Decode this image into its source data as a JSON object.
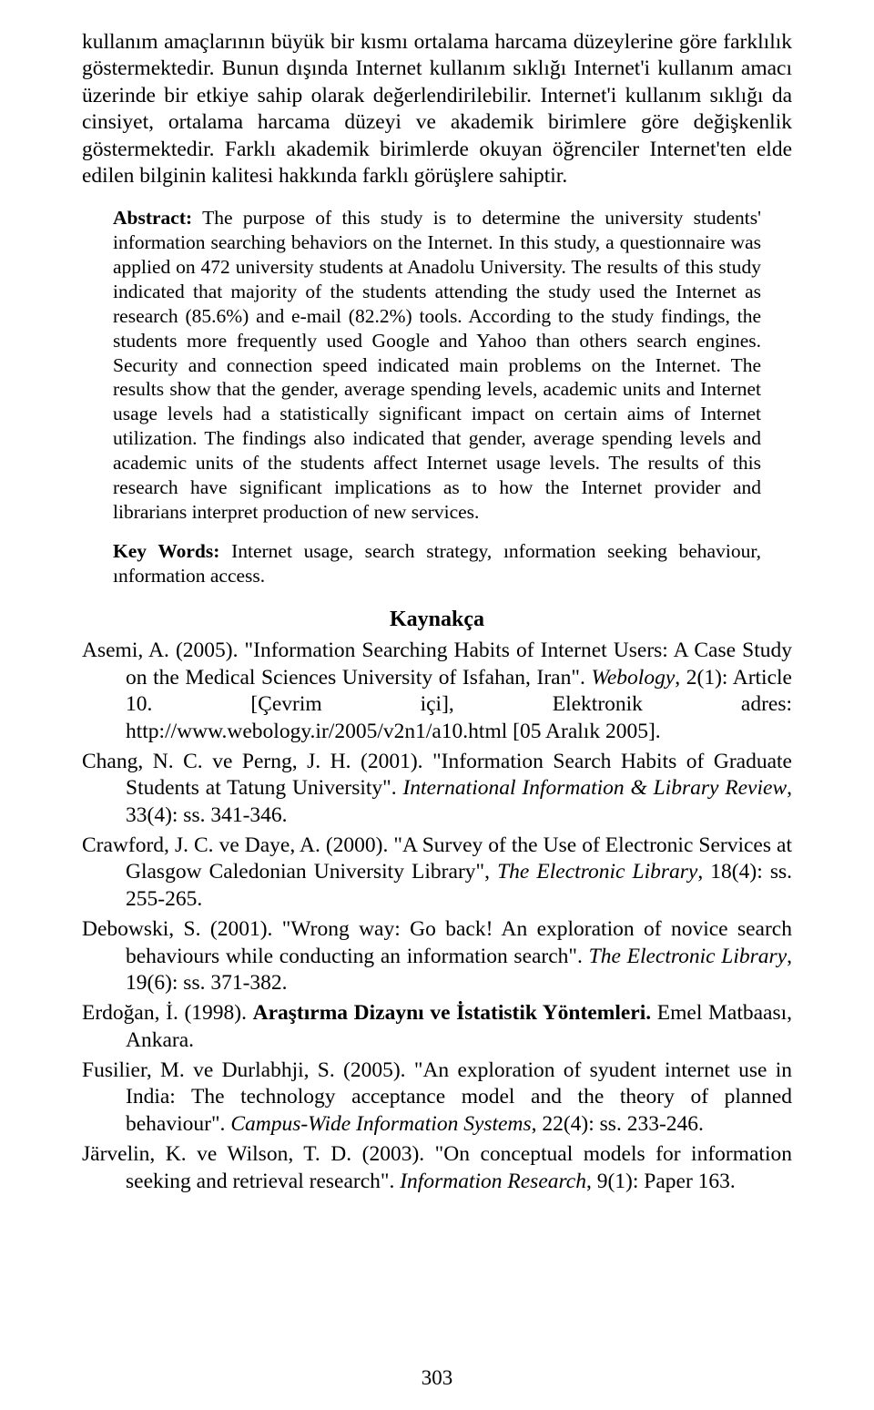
{
  "body_paragraph": "kullanım amaçlarının büyük bir kısmı ortalama harcama düzeylerine göre farklılık göstermektedir. Bunun dışında Internet kullanım sıklığı Internet'i kullanım amacı üzerinde bir etkiye sahip olarak değerlendirilebilir. Internet'i kullanım sıklığı da cinsiyet, ortalama harcama düzeyi ve akademik birimlere göre değişkenlik göstermektedir. Farklı akademik birimlerde okuyan öğrenciler Internet'ten elde edilen bilginin kalitesi hakkında farklı görüşlere sahiptir.",
  "abstract": {
    "lead": "Abstract:",
    "text": " The purpose of this study is to determine the university students' information searching behaviors on the Internet. In this study, a questionnaire was applied on 472 university students at Anadolu University. The results of this study indicated that majority of the students attending the study used the Internet as research (85.6%) and e-mail (82.2%) tools. According to the study findings, the students more frequently used Google and Yahoo than others search engines. Security and connection speed indicated main problems on the Internet. The results show that the gender, average spending levels, academic units and Internet usage levels had a statistically significant impact on certain aims of Internet utilization. The findings also indicated that gender, average spending levels and academic units of the students affect Internet usage levels. The results of this research have significant implications as to how the Internet provider and librarians interpret production of new services."
  },
  "keywords": {
    "lead": "Key Words:",
    "text": " Internet usage, search strategy, ınformation seeking behaviour, ınformation access."
  },
  "bibliography_heading": "Kaynakça",
  "references": {
    "r1": {
      "pre": "Asemi, A. (2005). \"Information Searching Habits of Internet Users: A Case Study on the Medical Sciences University of Isfahan, Iran\". ",
      "ital": "Webology",
      "post": ", 2(1): Article 10. [Çevrim içi], Elektronik adres: http://www.webology.ir/2005/v2n1/a10.html [05 Aralık 2005]."
    },
    "r2": {
      "pre": "Chang, N. C. ve Perng, J. H. (2001). \"Information Search Habits of Graduate Students at Tatung University\". ",
      "ital": "International Information & Library Review",
      "post": ", 33(4): ss. 341-346."
    },
    "r3": {
      "pre": "Crawford, J. C. ve Daye, A. (2000). \"A Survey of the Use of Electronic Services at Glasgow Caledonian University Library\", ",
      "ital": "The Electronic Library",
      "post": ", 18(4): ss. 255-265."
    },
    "r4": {
      "pre": "Debowski, S. (2001). \"Wrong way: Go back! An exploration of novice search behaviours while conducting an information search\". ",
      "ital": "The Electronic Library",
      "post": ", 19(6): ss. 371-382."
    },
    "r5": {
      "pre": "Erdoğan, İ. (1998). ",
      "bold": "Araştırma Dizaynı ve İstatistik Yöntemleri.",
      "post": " Emel Matbaası, Ankara."
    },
    "r6": {
      "pre": "Fusilier, M. ve Durlabhji, S. (2005). \"An exploration of syudent internet use in India: The technology acceptance model and the theory of planned behaviour\". ",
      "ital": "Campus-Wide Information Systems",
      "post": ", 22(4): ss. 233-246."
    },
    "r7": {
      "pre": "Järvelin, K. ve Wilson, T. D. (2003). \"On conceptual models for information seeking and retrieval research\". ",
      "ital": "Information Research",
      "post": ", 9(1): Paper 163."
    }
  },
  "page_number": "303"
}
